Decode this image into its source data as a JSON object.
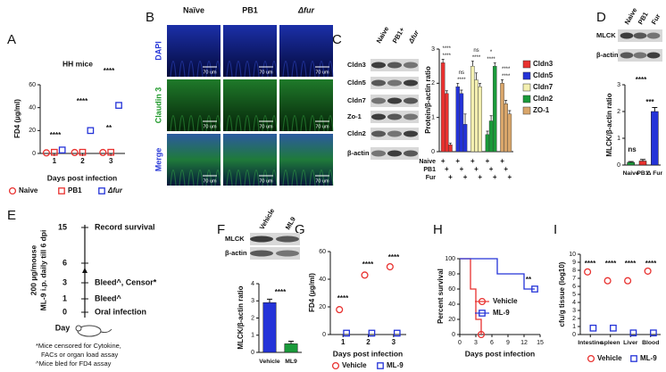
{
  "panels": [
    "A",
    "B",
    "C",
    "D",
    "E",
    "F",
    "G",
    "H",
    "I"
  ],
  "microscopy": {
    "columns": [
      "Naïve",
      "PB1",
      "Δfur"
    ],
    "rows": [
      "DAPI",
      "Claudin 3",
      "Merge"
    ],
    "scale_bar": "70 um"
  },
  "blot_C": {
    "lanes": [
      "Naive",
      "PB1+",
      "Δfur"
    ],
    "rows": [
      "Cldn3",
      "Cldn5",
      "Cldn7",
      "Zo-1",
      "Cldn2",
      "β-actin"
    ],
    "table_mark": "+"
  },
  "blot_D": {
    "lanes": [
      "Naive",
      "PB1",
      "Fur"
    ],
    "rows": [
      "MLCK",
      "β-actin"
    ]
  },
  "blot_F": {
    "lanes": [
      "Vehicle",
      "ML9"
    ],
    "rows": [
      "MLCK",
      "β-actin"
    ]
  },
  "timeline": {
    "days": [
      "15",
      "6",
      "3",
      "1",
      "0"
    ],
    "events": [
      "Record survival",
      "",
      "Bleed^, Censor*",
      "Bleed^",
      "Oral infection"
    ],
    "axis_label": "Day",
    "treatment": [
      "200 µg/mouse",
      "ML-9 i.p. daily till 6 dpi"
    ],
    "footnotes": [
      "*Mice  censored for Cytokine,",
      "FACs or organ load assay",
      "^Mice bled for FD4 assay"
    ]
  },
  "chart_data": [
    {
      "type": "dot",
      "title": "HH mice",
      "x_label": "Days post infection",
      "y_label": "FD4 (µg/ml)",
      "categories": [
        "1",
        "2",
        "3"
      ],
      "series": [
        {
          "name": "Naive",
          "color": "#e8312f",
          "marker": "circle",
          "values": [
            0.5,
            0.8,
            0.8
          ]
        },
        {
          "name": "PB1",
          "color": "#e8312f",
          "marker": "square",
          "values": [
            1,
            1,
            1
          ]
        },
        {
          "name": "Δfur",
          "color": "#2433d8",
          "marker": "square",
          "values": [
            3,
            20,
            42
          ]
        }
      ],
      "ylim": [
        0,
        60
      ],
      "yticks": [
        0,
        20,
        40,
        60
      ],
      "annotations": [
        "****",
        "****",
        "****",
        "**"
      ]
    },
    {
      "type": "grouped_bar",
      "y_label": "Protein/β-actin ratio",
      "categories": [
        "Naive",
        "PB1",
        "Fur"
      ],
      "series": [
        {
          "name": "Cldn3",
          "color": "#e8312f",
          "values": [
            2.6,
            1.7,
            0.2
          ],
          "errors": [
            0.1,
            0.08,
            0.05
          ],
          "annotations": [
            "****",
            "****"
          ]
        },
        {
          "name": "Cldn5",
          "color": "#2433d8",
          "values": [
            1.9,
            1.7,
            0.8
          ],
          "errors": [
            0.1,
            0.1,
            0.3
          ],
          "annotations": [
            "****",
            "ns"
          ]
        },
        {
          "name": "Cldn7",
          "color": "#f3efb0",
          "values": [
            2.5,
            2.1,
            1.9
          ],
          "errors": [
            0.15,
            0.2,
            0.1
          ],
          "annotations": [
            "****",
            "ns"
          ]
        },
        {
          "name": "Cldn2",
          "color": "#1a9a3a",
          "values": [
            0.5,
            0.9,
            2.5
          ],
          "errors": [
            0.1,
            0.15,
            0.1
          ],
          "annotations": [
            "****",
            "*"
          ]
        },
        {
          "name": "ZO-1",
          "color": "#d9a66a",
          "values": [
            2.0,
            1.4,
            1.1
          ],
          "errors": [
            0.1,
            0.1,
            0.1
          ],
          "annotations": [
            "****",
            "****"
          ]
        }
      ],
      "ylim": [
        0,
        3
      ],
      "yticks": [
        0,
        1,
        2,
        3
      ]
    },
    {
      "type": "bar",
      "y_label": "MLCK/β-actin ratio",
      "categories": [
        "Naive",
        "PB1",
        "Δ Fur"
      ],
      "values": [
        0.1,
        0.15,
        2.0
      ],
      "errors": [
        0.03,
        0.06,
        0.15
      ],
      "colors": [
        "#1a9a3a",
        "#e8312f",
        "#2433d8"
      ],
      "ylim": [
        0,
        3
      ],
      "yticks": [
        0,
        1,
        2,
        3
      ],
      "annotations": [
        "****",
        "***",
        "ns"
      ]
    },
    {
      "type": "bar",
      "y_label": "MLCK/β-actin ratio",
      "categories": [
        "Vehicle",
        "ML9"
      ],
      "values": [
        2.9,
        0.5
      ],
      "errors": [
        0.2,
        0.15
      ],
      "colors": [
        "#2433d8",
        "#1a9a3a"
      ],
      "ylim": [
        0,
        4
      ],
      "yticks": [
        0,
        1,
        2,
        3,
        4
      ],
      "annotations": [
        "****"
      ]
    },
    {
      "type": "dot",
      "x_label": "Days post infection",
      "y_label": "FD4 (µg/ml)",
      "categories": [
        "1",
        "2",
        "3"
      ],
      "series": [
        {
          "name": "Vehicle",
          "color": "#e8312f",
          "marker": "circle",
          "values": [
            18,
            43,
            49
          ]
        },
        {
          "name": "ML-9",
          "color": "#2433d8",
          "marker": "square",
          "values": [
            1,
            1,
            1
          ]
        }
      ],
      "ylim": [
        0,
        60
      ],
      "yticks": [
        0,
        20,
        40,
        60
      ],
      "annotations": [
        "****",
        "****",
        "****"
      ]
    },
    {
      "type": "line",
      "x_label": "Days post infection",
      "y_label": "Percent survival",
      "series": [
        {
          "name": "Vehicle",
          "color": "#e8312f",
          "marker": "circle",
          "x": [
            0,
            2,
            3,
            4
          ],
          "values": [
            100,
            60,
            20,
            0
          ]
        },
        {
          "name": "ML-9",
          "color": "#2433d8",
          "marker": "square",
          "x": [
            0,
            7,
            12,
            14
          ],
          "values": [
            100,
            80,
            60,
            60
          ]
        }
      ],
      "xlim": [
        0,
        15
      ],
      "xticks": [
        0,
        3,
        6,
        9,
        12,
        15
      ],
      "ylim": [
        0,
        100
      ],
      "yticks": [
        0,
        20,
        40,
        60,
        80,
        100
      ],
      "annotations": [
        "**"
      ]
    },
    {
      "type": "dot",
      "y_label": "cfu/g tissue (log10)",
      "categories": [
        "Intestine",
        "spleen",
        "Liver",
        "Blood"
      ],
      "series": [
        {
          "name": "Vehicle",
          "color": "#e8312f",
          "marker": "circle",
          "values": [
            7.8,
            6.7,
            6.7,
            7.9
          ]
        },
        {
          "name": "ML-9",
          "color": "#2433d8",
          "marker": "square",
          "values": [
            0.8,
            0.8,
            0.2,
            0.2
          ]
        }
      ],
      "ylim": [
        0,
        10
      ],
      "yticks": [
        0,
        1,
        2,
        3,
        4,
        5,
        6,
        7,
        8,
        9,
        10
      ],
      "annotations": [
        "****",
        "****",
        "****",
        "****"
      ]
    }
  ]
}
